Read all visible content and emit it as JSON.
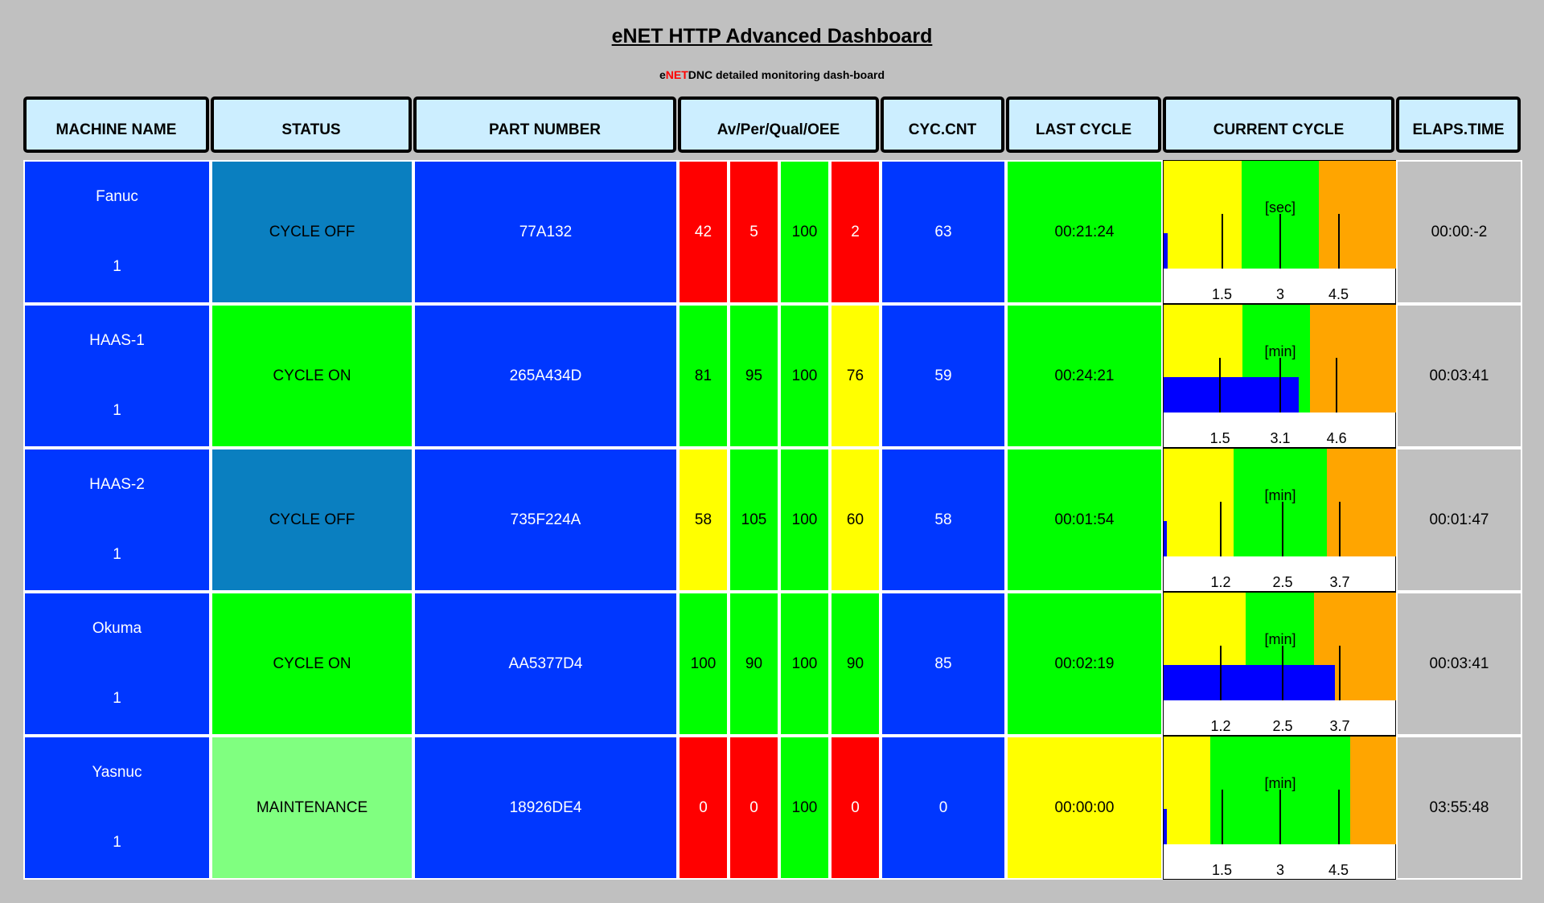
{
  "header": {
    "title": "eNET HTTP Advanced Dashboard",
    "subtitle": [
      "e",
      "NET",
      "DNC detailed monitoring dash-board"
    ]
  },
  "table": {
    "columns": [
      "MACHINE NAME",
      "STATUS",
      "PART NUMBER",
      "Av/Per/Qual/OEE",
      "CYC.CNT",
      "LAST CYCLE",
      "CURRENT CYCLE",
      "ELAPS.TIME"
    ],
    "rows": [
      {
        "machine": "Fanuc",
        "count": 1,
        "status": "CYCLE OFF",
        "status_color": "#0a7fc0",
        "part": "77A132",
        "oee": [
          42,
          5,
          100,
          2
        ],
        "oee_colors": [
          "#ff0000",
          "#ff0000",
          "#00ff00",
          "#ff0000"
        ],
        "cycles": 63,
        "last_cycle": "00:21:24",
        "last_color": "#00ff00",
        "gauge": {
          "unit": "[sec]",
          "ticks": [
            1.5,
            3,
            4.5
          ],
          "max": 6,
          "yellow_end": 2,
          "green_end": 4,
          "bar": 0.1
        },
        "elapsed": "00:00:-2"
      },
      {
        "machine": "HAAS-1",
        "count": 1,
        "status": "CYCLE ON",
        "status_color": "#00ff00",
        "part": "265A434D",
        "oee": [
          81,
          95,
          100,
          76
        ],
        "oee_colors": [
          "#00ff00",
          "#00ff00",
          "#00ff00",
          "#ffff00"
        ],
        "cycles": 59,
        "last_cycle": "00:24:21",
        "last_color": "#00ff00",
        "gauge": {
          "unit": "[min]",
          "ticks": [
            1.5,
            3.1,
            4.6
          ],
          "max": 6.2,
          "yellow_end": 2.1,
          "green_end": 3.9,
          "bar": 3.6
        },
        "elapsed": "00:03:41"
      },
      {
        "machine": "HAAS-2",
        "count": 1,
        "status": "CYCLE OFF",
        "status_color": "#0a7fc0",
        "part": "735F224A",
        "oee": [
          58,
          105,
          100,
          60
        ],
        "oee_colors": [
          "#ffff00",
          "#00ff00",
          "#00ff00",
          "#ffff00"
        ],
        "cycles": 58,
        "last_cycle": "00:01:54",
        "last_color": "#00ff00",
        "gauge": {
          "unit": "[min]",
          "ticks": [
            1.2,
            2.5,
            3.7
          ],
          "max": 4.9,
          "yellow_end": 1.47,
          "green_end": 3.43,
          "bar": 0.06
        },
        "elapsed": "00:01:47"
      },
      {
        "machine": "Okuma",
        "count": 1,
        "status": "CYCLE ON",
        "status_color": "#00ff00",
        "part": "AA5377D4",
        "oee": [
          100,
          90,
          100,
          90
        ],
        "oee_colors": [
          "#00ff00",
          "#00ff00",
          "#00ff00",
          "#00ff00"
        ],
        "cycles": 85,
        "last_cycle": "00:02:19",
        "last_color": "#00ff00",
        "gauge": {
          "unit": "[min]",
          "ticks": [
            1.2,
            2.5,
            3.7
          ],
          "max": 4.9,
          "yellow_end": 1.72,
          "green_end": 3.16,
          "bar": 3.6
        },
        "elapsed": "00:03:41"
      },
      {
        "machine": "Yasnuc",
        "count": 1,
        "status": "MAINTENANCE",
        "status_color": "#80ff80",
        "part": "18926DE4",
        "oee": [
          0,
          0,
          100,
          0
        ],
        "oee_colors": [
          "#ff0000",
          "#ff0000",
          "#00ff00",
          "#ff0000"
        ],
        "cycles": 0,
        "last_cycle": "00:00:00",
        "last_color": "#ffff00",
        "gauge": {
          "unit": "[min]",
          "ticks": [
            1.5,
            3,
            4.5
          ],
          "max": 6,
          "yellow_end": 1.2,
          "green_end": 4.8,
          "bar": 0.08
        },
        "elapsed": "03:55:48"
      }
    ]
  }
}
